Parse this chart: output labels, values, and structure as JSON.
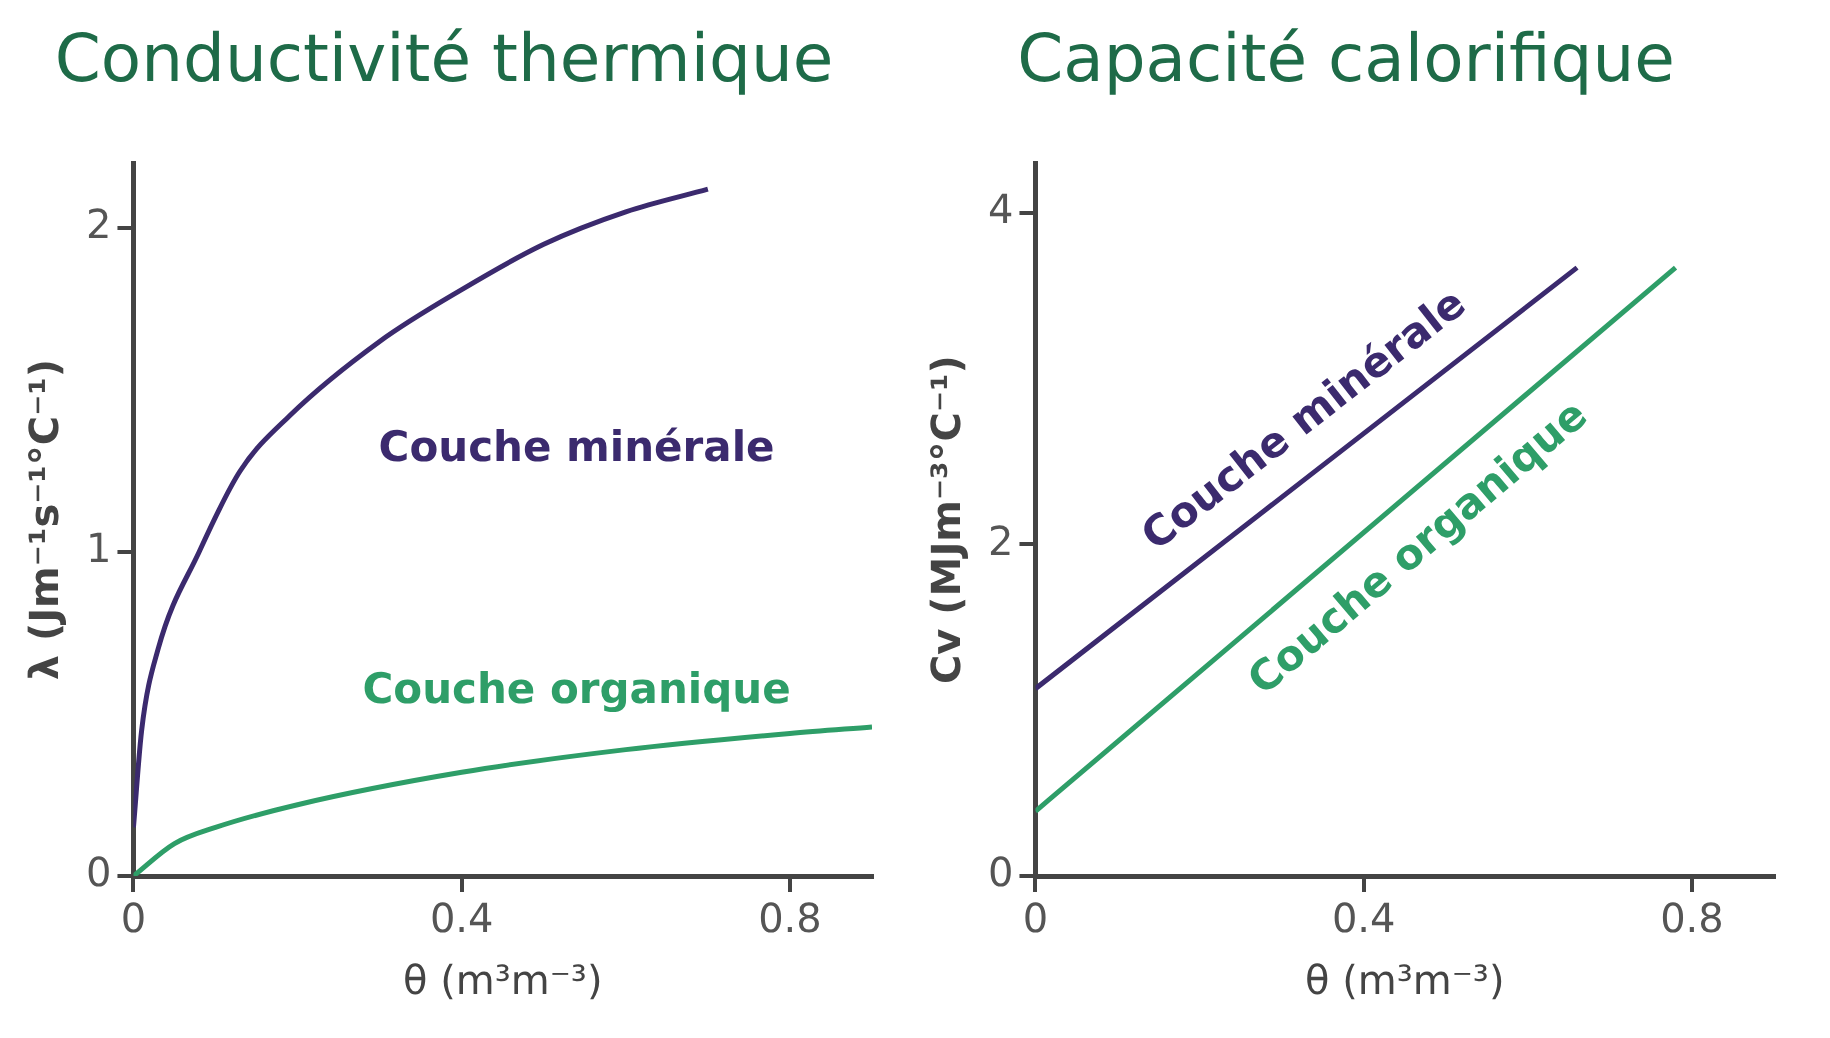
{
  "chart_data": [
    {
      "type": "line",
      "title": "Conductivité thermique",
      "xlabel": "θ (m³m⁻³)",
      "ylabel": "λ (Jm⁻¹s⁻¹°C⁻¹)",
      "xlim": [
        0,
        0.9
      ],
      "xticks": [
        0,
        0.4,
        0.8
      ],
      "ylim": [
        0,
        2.2
      ],
      "yticks": [
        0,
        1,
        2
      ],
      "grid": false,
      "legend": false,
      "marker": "none",
      "series": [
        {
          "name": "Couche minérale",
          "color": "#3b2a6e",
          "x": [
            0,
            0.01,
            0.03,
            0.08,
            0.13,
            0.19,
            0.3,
            0.4,
            0.5,
            0.6,
            0.7
          ],
          "values": [
            0.15,
            0.45,
            0.7,
            1.0,
            1.25,
            1.42,
            1.65,
            1.81,
            1.95,
            2.05,
            2.12
          ]
        },
        {
          "name": "Couche organique",
          "color": "#2e9e68",
          "x": [
            0,
            0.05,
            0.1,
            0.2,
            0.4,
            0.6,
            0.8,
            0.9
          ],
          "values": [
            0,
            0.1,
            0.15,
            0.22,
            0.32,
            0.39,
            0.44,
            0.46
          ]
        }
      ]
    },
    {
      "type": "line",
      "title": "Capacité calorifique",
      "xlabel": "θ (m³m⁻³)",
      "ylabel": "Cv (MJm⁻³°C⁻¹)",
      "xlim": [
        0,
        0.9
      ],
      "xticks": [
        0,
        0.4,
        0.8
      ],
      "ylim": [
        0,
        4.3
      ],
      "yticks": [
        0,
        2,
        4
      ],
      "grid": false,
      "legend": false,
      "marker": "none",
      "series": [
        {
          "name": "Couche minérale",
          "color": "#3b2a6e",
          "x": [
            0,
            0.66
          ],
          "values": [
            1.13,
            3.67
          ]
        },
        {
          "name": "Couche organique",
          "color": "#2e9e68",
          "x": [
            0,
            0.78
          ],
          "values": [
            0.39,
            3.67
          ]
        }
      ]
    }
  ]
}
